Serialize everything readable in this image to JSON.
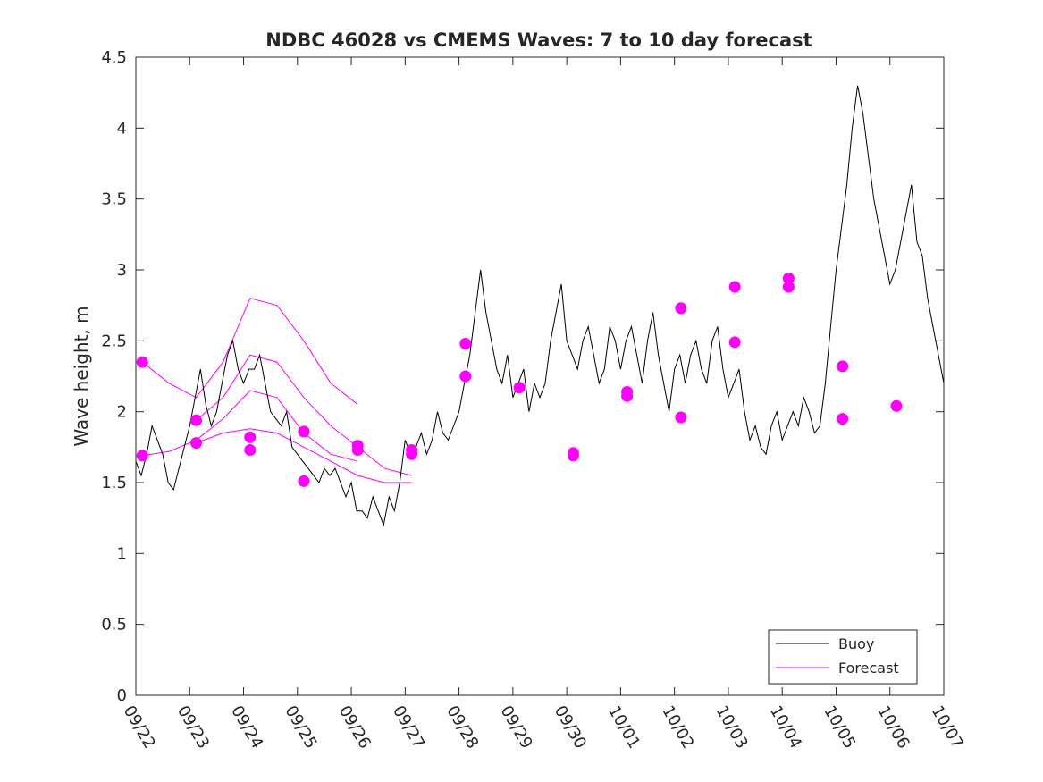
{
  "chart_data": {
    "type": "line",
    "title": "NDBC 46028 vs CMEMS Waves: 7 to 10 day forecast",
    "xlabel": "",
    "ylabel": "Wave height, m",
    "xlim": [
      0,
      15
    ],
    "ylim": [
      0,
      4.5
    ],
    "x_ticks": [
      0,
      1,
      2,
      3,
      4,
      5,
      6,
      7,
      8,
      9,
      10,
      11,
      12,
      13,
      14,
      15
    ],
    "x_tick_labels": [
      "09/22",
      "09/23",
      "09/24",
      "09/25",
      "09/26",
      "09/27",
      "09/28",
      "09/29",
      "09/30",
      "10/01",
      "10/02",
      "10/03",
      "10/04",
      "10/05",
      "10/06",
      "10/07"
    ],
    "y_ticks": [
      0,
      0.5,
      1,
      1.5,
      2,
      2.5,
      3,
      3.5,
      4,
      4.5
    ],
    "y_tick_labels": [
      "0",
      "0.5",
      "1",
      "1.5",
      "2",
      "2.5",
      "3",
      "3.5",
      "4",
      "4.5"
    ],
    "legend": {
      "position": "bottom-right",
      "entries": [
        {
          "label": "Buoy",
          "color": "#000000"
        },
        {
          "label": "Forecast",
          "color": "#ff00ff"
        }
      ]
    },
    "buoy": {
      "name": "Buoy",
      "color": "#000000",
      "points": [
        [
          0.0,
          1.65
        ],
        [
          0.1,
          1.55
        ],
        [
          0.2,
          1.7
        ],
        [
          0.3,
          1.9
        ],
        [
          0.4,
          1.8
        ],
        [
          0.5,
          1.7
        ],
        [
          0.6,
          1.5
        ],
        [
          0.7,
          1.45
        ],
        [
          0.8,
          1.6
        ],
        [
          0.9,
          1.75
        ],
        [
          1.0,
          1.9
        ],
        [
          1.1,
          2.1
        ],
        [
          1.2,
          2.3
        ],
        [
          1.3,
          2.05
        ],
        [
          1.4,
          1.9
        ],
        [
          1.5,
          2.0
        ],
        [
          1.6,
          2.2
        ],
        [
          1.7,
          2.4
        ],
        [
          1.8,
          2.5
        ],
        [
          1.9,
          2.3
        ],
        [
          2.0,
          2.2
        ],
        [
          2.1,
          2.3
        ],
        [
          2.2,
          2.3
        ],
        [
          2.3,
          2.4
        ],
        [
          2.4,
          2.2
        ],
        [
          2.5,
          2.0
        ],
        [
          2.6,
          1.95
        ],
        [
          2.7,
          1.9
        ],
        [
          2.8,
          2.0
        ],
        [
          2.9,
          1.75
        ],
        [
          3.0,
          1.7
        ],
        [
          3.1,
          1.65
        ],
        [
          3.2,
          1.6
        ],
        [
          3.3,
          1.55
        ],
        [
          3.4,
          1.5
        ],
        [
          3.5,
          1.6
        ],
        [
          3.6,
          1.55
        ],
        [
          3.7,
          1.6
        ],
        [
          3.8,
          1.5
        ],
        [
          3.9,
          1.4
        ],
        [
          4.0,
          1.5
        ],
        [
          4.1,
          1.3
        ],
        [
          4.2,
          1.3
        ],
        [
          4.3,
          1.25
        ],
        [
          4.4,
          1.4
        ],
        [
          4.5,
          1.3
        ],
        [
          4.6,
          1.2
        ],
        [
          4.7,
          1.4
        ],
        [
          4.8,
          1.3
        ],
        [
          4.9,
          1.5
        ],
        [
          5.0,
          1.8
        ],
        [
          5.1,
          1.7
        ],
        [
          5.2,
          1.75
        ],
        [
          5.3,
          1.85
        ],
        [
          5.4,
          1.7
        ],
        [
          5.5,
          1.8
        ],
        [
          5.6,
          2.0
        ],
        [
          5.7,
          1.85
        ],
        [
          5.8,
          1.8
        ],
        [
          5.9,
          1.9
        ],
        [
          6.0,
          2.0
        ],
        [
          6.1,
          2.2
        ],
        [
          6.2,
          2.4
        ],
        [
          6.3,
          2.7
        ],
        [
          6.4,
          3.0
        ],
        [
          6.5,
          2.7
        ],
        [
          6.6,
          2.5
        ],
        [
          6.7,
          2.3
        ],
        [
          6.8,
          2.2
        ],
        [
          6.9,
          2.4
        ],
        [
          7.0,
          2.1
        ],
        [
          7.1,
          2.2
        ],
        [
          7.2,
          2.3
        ],
        [
          7.3,
          2.0
        ],
        [
          7.4,
          2.2
        ],
        [
          7.5,
          2.1
        ],
        [
          7.6,
          2.2
        ],
        [
          7.7,
          2.5
        ],
        [
          7.8,
          2.7
        ],
        [
          7.9,
          2.9
        ],
        [
          8.0,
          2.5
        ],
        [
          8.1,
          2.4
        ],
        [
          8.2,
          2.3
        ],
        [
          8.3,
          2.5
        ],
        [
          8.4,
          2.6
        ],
        [
          8.5,
          2.4
        ],
        [
          8.6,
          2.2
        ],
        [
          8.7,
          2.3
        ],
        [
          8.8,
          2.6
        ],
        [
          8.9,
          2.5
        ],
        [
          9.0,
          2.3
        ],
        [
          9.1,
          2.5
        ],
        [
          9.2,
          2.6
        ],
        [
          9.3,
          2.4
        ],
        [
          9.4,
          2.2
        ],
        [
          9.5,
          2.5
        ],
        [
          9.6,
          2.7
        ],
        [
          9.7,
          2.4
        ],
        [
          9.8,
          2.2
        ],
        [
          9.9,
          2.0
        ],
        [
          10.0,
          2.3
        ],
        [
          10.1,
          2.4
        ],
        [
          10.2,
          2.2
        ],
        [
          10.3,
          2.4
        ],
        [
          10.4,
          2.5
        ],
        [
          10.5,
          2.3
        ],
        [
          10.6,
          2.2
        ],
        [
          10.7,
          2.5
        ],
        [
          10.8,
          2.6
        ],
        [
          10.9,
          2.3
        ],
        [
          11.0,
          2.1
        ],
        [
          11.1,
          2.2
        ],
        [
          11.2,
          2.3
        ],
        [
          11.3,
          2.0
        ],
        [
          11.4,
          1.8
        ],
        [
          11.5,
          1.9
        ],
        [
          11.6,
          1.75
        ],
        [
          11.7,
          1.7
        ],
        [
          11.8,
          1.9
        ],
        [
          11.9,
          2.0
        ],
        [
          12.0,
          1.8
        ],
        [
          12.1,
          1.9
        ],
        [
          12.2,
          2.0
        ],
        [
          12.3,
          1.9
        ],
        [
          12.4,
          2.1
        ],
        [
          12.5,
          2.0
        ],
        [
          12.6,
          1.85
        ],
        [
          12.7,
          1.9
        ],
        [
          12.8,
          2.2
        ],
        [
          12.9,
          2.6
        ],
        [
          13.0,
          3.0
        ],
        [
          13.1,
          3.3
        ],
        [
          13.2,
          3.6
        ],
        [
          13.3,
          4.0
        ],
        [
          13.4,
          4.3
        ],
        [
          13.5,
          4.1
        ],
        [
          13.6,
          3.8
        ],
        [
          13.7,
          3.5
        ],
        [
          13.8,
          3.3
        ],
        [
          13.9,
          3.1
        ],
        [
          14.0,
          2.9
        ],
        [
          14.1,
          3.0
        ],
        [
          14.2,
          3.2
        ],
        [
          14.3,
          3.4
        ],
        [
          14.4,
          3.6
        ],
        [
          14.5,
          3.2
        ],
        [
          14.6,
          3.1
        ],
        [
          14.7,
          2.8
        ],
        [
          14.8,
          2.6
        ],
        [
          14.9,
          2.4
        ],
        [
          15.0,
          2.2
        ]
      ]
    },
    "forecast": {
      "name": "Forecast",
      "color": "#ff00ff",
      "series": [
        {
          "start": [
            0.12,
            2.35
          ],
          "values": [
            2.35,
            2.2,
            2.1,
            2.35,
            2.8,
            2.75,
            2.5,
            2.2,
            2.05
          ]
        },
        {
          "start": [
            0.12,
            1.69
          ],
          "values": [
            1.69,
            1.72,
            1.8,
            1.95,
            2.15,
            2.1,
            1.85,
            1.7,
            1.65
          ]
        },
        {
          "start": [
            1.12,
            1.94
          ],
          "values": [
            1.94,
            2.1,
            2.4,
            2.35,
            2.1,
            1.9,
            1.75,
            1.6,
            1.55
          ]
        },
        {
          "start": [
            1.12,
            1.78
          ],
          "values": [
            1.78,
            1.85,
            1.88,
            1.85,
            1.75,
            1.65,
            1.55,
            1.5,
            1.5
          ]
        }
      ]
    },
    "forecast_markers": [
      [
        0.12,
        2.35
      ],
      [
        0.12,
        1.69
      ],
      [
        1.12,
        1.94
      ],
      [
        1.12,
        1.78
      ],
      [
        2.12,
        1.82
      ],
      [
        2.12,
        1.73
      ],
      [
        3.12,
        1.86
      ],
      [
        3.12,
        1.51
      ],
      [
        4.12,
        1.76
      ],
      [
        4.12,
        1.73
      ],
      [
        5.12,
        1.73
      ],
      [
        5.12,
        1.7
      ],
      [
        6.12,
        2.48
      ],
      [
        6.12,
        2.25
      ],
      [
        7.12,
        2.17
      ],
      [
        8.12,
        1.71
      ],
      [
        8.12,
        1.69
      ],
      [
        9.12,
        2.14
      ],
      [
        9.12,
        2.11
      ],
      [
        10.12,
        2.73
      ],
      [
        10.12,
        1.96
      ],
      [
        11.12,
        2.88
      ],
      [
        11.12,
        2.49
      ],
      [
        12.12,
        2.94
      ],
      [
        12.12,
        2.88
      ],
      [
        13.12,
        2.32
      ],
      [
        13.12,
        1.95
      ],
      [
        14.12,
        2.04
      ]
    ]
  }
}
